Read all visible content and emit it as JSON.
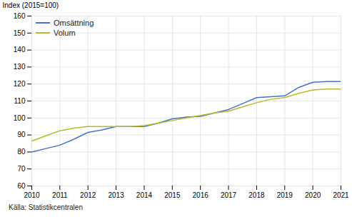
{
  "chart_data": {
    "type": "line",
    "ylabel": "Index (2015=100)",
    "source": "Källa: Statistikcentralen",
    "x": [
      2010,
      2010.5,
      2011,
      2011.5,
      2012,
      2012.5,
      2013,
      2013.5,
      2014,
      2014.5,
      2015,
      2015.5,
      2016,
      2016.5,
      2017,
      2017.5,
      2018,
      2018.5,
      2019,
      2019.5,
      2020,
      2020.5,
      2021
    ],
    "series": [
      {
        "name": "Omsättning",
        "color": "#4472c4",
        "values": [
          80.0,
          82.0,
          84.0,
          87.5,
          91.5,
          93.0,
          95.0,
          95.0,
          95.0,
          97.0,
          99.5,
          100.5,
          101.0,
          103.0,
          105.0,
          108.5,
          112.0,
          112.5,
          113.0,
          118.0,
          121.0,
          121.5,
          121.5
        ]
      },
      {
        "name": "Volum",
        "color": "#b8bb27",
        "values": [
          86.5,
          89.5,
          92.5,
          94.0,
          95.0,
          95.0,
          95.0,
          95.0,
          95.5,
          97.0,
          98.5,
          100.0,
          101.5,
          103.0,
          104.0,
          106.5,
          109.0,
          111.0,
          112.0,
          114.5,
          116.5,
          117.0,
          117.0
        ]
      }
    ],
    "xlim": [
      2010,
      2021
    ],
    "ylim": [
      60,
      160
    ],
    "xticks": [
      2010,
      2011,
      2012,
      2013,
      2014,
      2015,
      2016,
      2017,
      2018,
      2019,
      2020,
      2021
    ],
    "yticks": [
      60,
      70,
      80,
      90,
      100,
      110,
      120,
      130,
      140,
      150,
      160
    ],
    "grid": true,
    "legend": "upper left"
  }
}
